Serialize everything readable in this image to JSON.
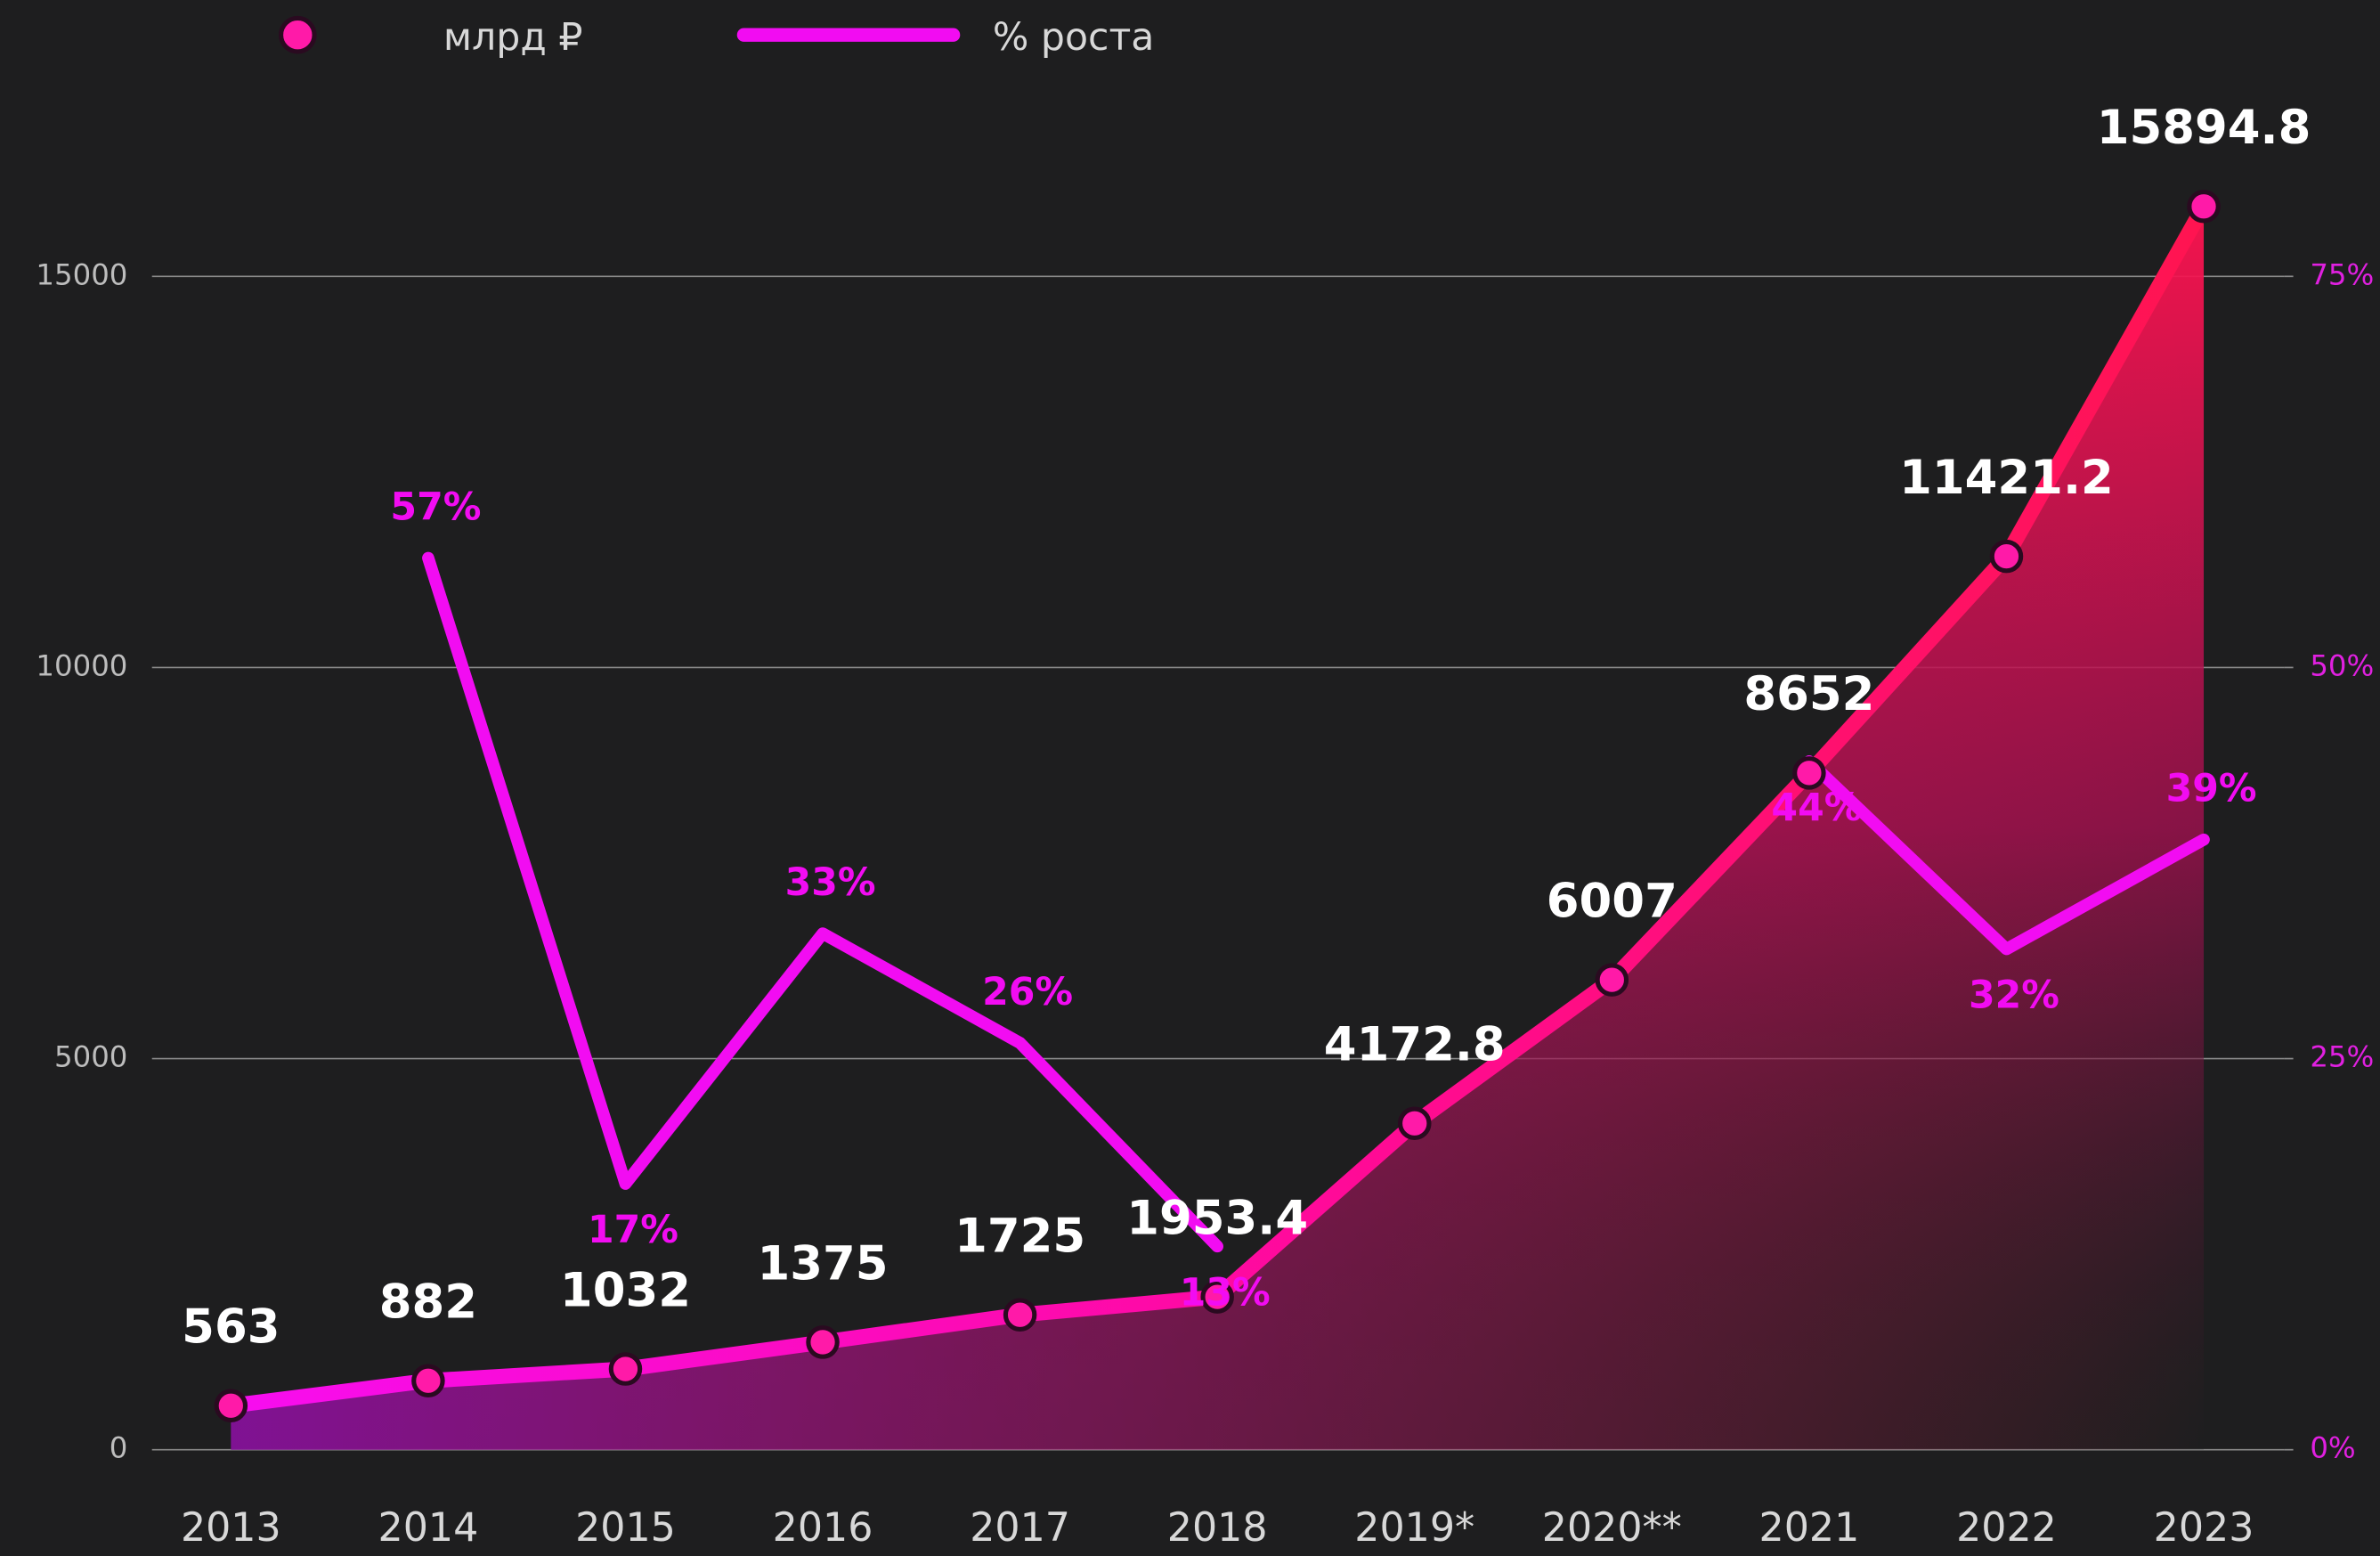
{
  "chart_data": {
    "type": "line",
    "categories": [
      "2013",
      "2014",
      "2015",
      "2016",
      "2017",
      "2018",
      "2019*",
      "2020**",
      "2021",
      "2022",
      "2023"
    ],
    "series": [
      {
        "name": "млрд ₽",
        "color": "#ff1aa8",
        "values": [
          563,
          882,
          1032,
          1375,
          1725,
          1953.4,
          4172.8,
          6007,
          8652,
          11421.2,
          15894.8
        ]
      },
      {
        "name": "% роста",
        "color": "#f20cf2",
        "axis": "y2",
        "values": [
          null,
          57,
          17,
          33,
          26,
          13,
          null,
          null,
          44,
          32,
          39
        ],
        "value_labels": [
          null,
          "57%",
          "17%",
          "33%",
          "26%",
          "13%",
          null,
          null,
          "44%",
          "32%",
          "39%"
        ]
      }
    ],
    "ylim": [
      0,
      17000
    ],
    "yticks": [
      0,
      5000,
      10000,
      15000
    ],
    "y2lim": [
      0,
      85
    ],
    "y2ticks": [
      {
        "value": 0,
        "label": "0%"
      },
      {
        "value": 25,
        "label": "25%"
      },
      {
        "value": 50,
        "label": "50%"
      },
      {
        "value": 75,
        "label": "75%"
      }
    ],
    "grid": true,
    "legend": "top left"
  }
}
